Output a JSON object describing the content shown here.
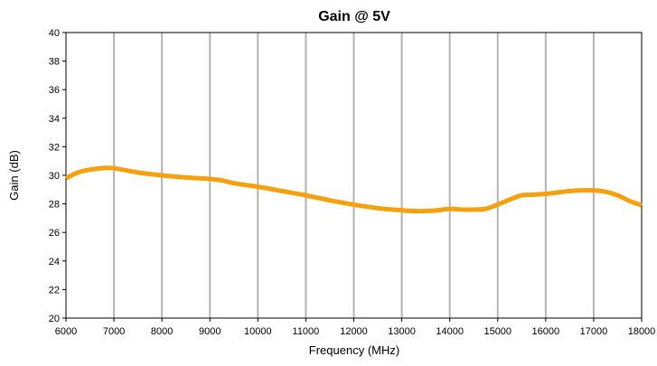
{
  "chart_data": {
    "type": "line",
    "title": "Gain @ 5V",
    "xlabel": "Frequency (MHz)",
    "ylabel": "Gain (dB)",
    "xlim": [
      6000,
      18000
    ],
    "ylim": [
      20,
      40
    ],
    "xticks": [
      6000,
      7000,
      8000,
      9000,
      10000,
      11000,
      12000,
      13000,
      14000,
      15000,
      16000,
      17000,
      18000
    ],
    "yticks": [
      20,
      22,
      24,
      26,
      28,
      30,
      32,
      34,
      36,
      38,
      40
    ],
    "grid": "vertical",
    "legend": "none",
    "series": [
      {
        "color": "#F5A00E",
        "x": [
          6000,
          6250,
          6500,
          6750,
          7000,
          7500,
          8000,
          8500,
          9000,
          9250,
          9500,
          10000,
          10500,
          11000,
          11500,
          12000,
          12500,
          13000,
          13250,
          13500,
          13750,
          14000,
          14250,
          14500,
          14750,
          15000,
          15250,
          15500,
          15750,
          16000,
          16250,
          16500,
          16750,
          17000,
          17250,
          17500,
          17750,
          18000
        ],
        "y": [
          29.8,
          30.2,
          30.4,
          30.5,
          30.5,
          30.2,
          30.0,
          29.85,
          29.75,
          29.65,
          29.45,
          29.2,
          28.9,
          28.6,
          28.25,
          27.95,
          27.7,
          27.55,
          27.5,
          27.5,
          27.55,
          27.65,
          27.6,
          27.6,
          27.65,
          27.95,
          28.3,
          28.6,
          28.65,
          28.7,
          28.8,
          28.9,
          28.95,
          28.95,
          28.85,
          28.6,
          28.2,
          27.9
        ]
      }
    ]
  }
}
